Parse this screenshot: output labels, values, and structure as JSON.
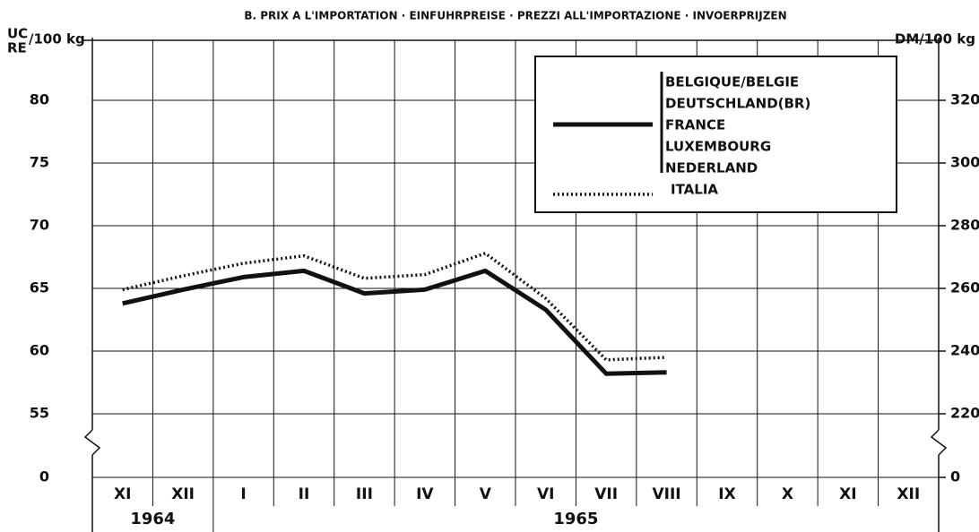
{
  "chart_data": {
    "type": "line",
    "title": "B.  PRIX A L'IMPORTATION · EINFUHRPREISE · PREZZI ALL'IMPORTAZIONE  ·  INVOERPRIJZEN",
    "ylabel": [
      "UC",
      "RE"
    ],
    "ylabel_unit": "/100 kg",
    "y2label": "DM/100 kg",
    "categories": [
      "XI",
      "XII",
      "I",
      "II",
      "III",
      "IV",
      "V",
      "VI",
      "VII",
      "VIII",
      "IX",
      "X",
      "XI",
      "XII"
    ],
    "groups": [
      {
        "label": "1964",
        "count": 2
      },
      {
        "label": "1965",
        "count": 12
      }
    ],
    "series": [
      {
        "name": [
          "BELGIQUE/BELGIE",
          "DEUTSCHLAND(BR)",
          "FRANCE",
          "LUXEMBOURG",
          "NEDERLAND"
        ],
        "color": "#111111",
        "style": "solid",
        "values": [
          63.8,
          64.9,
          65.9,
          66.4,
          64.6,
          64.9,
          66.4,
          63.3,
          58.2,
          58.3,
          null,
          null,
          null,
          null
        ]
      },
      {
        "name": "ITALIA",
        "color": "#111111",
        "style": "dotted",
        "values": [
          64.9,
          66.0,
          67.0,
          67.6,
          65.8,
          66.1,
          67.8,
          64.2,
          59.3,
          59.5,
          null,
          null,
          null,
          null
        ]
      }
    ],
    "ylim": [
      0,
      85
    ],
    "ybreak": [
      0,
      55
    ],
    "yticks": [
      0,
      55,
      60,
      65,
      70,
      75,
      80
    ],
    "y2lim": [
      0,
      340
    ],
    "y2break": [
      0,
      220
    ],
    "y2ticks": [
      0,
      220,
      240,
      260,
      280,
      300,
      320
    ],
    "grid": true
  }
}
